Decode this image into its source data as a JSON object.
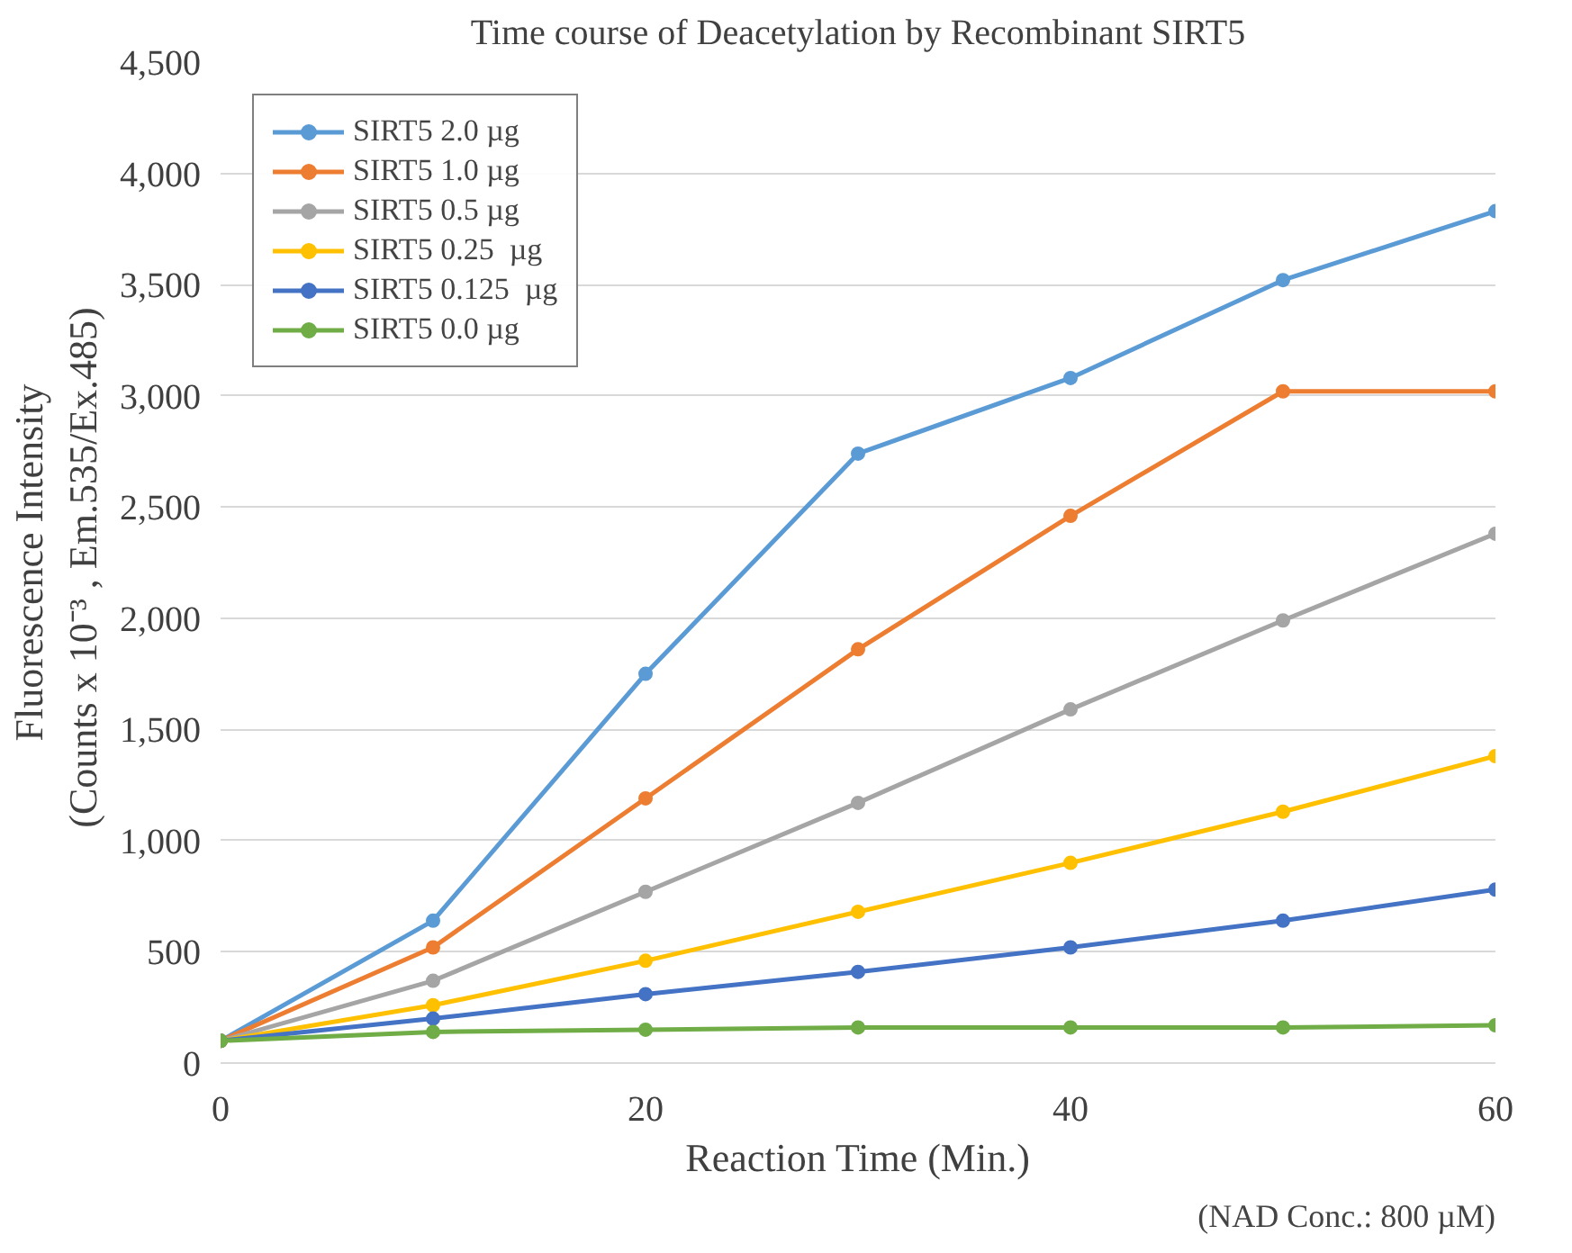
{
  "chart_data": {
    "type": "line",
    "title": "Time course of Deacetylation by Recombinant SIRT5",
    "xlabel": "Reaction Time (Min.)",
    "ylabel": "Fluorescence Intensity\n(Counts x 10⁻³ ,  Em.535/Ex.485)",
    "x": [
      0,
      10,
      20,
      30,
      40,
      50,
      60
    ],
    "series": [
      {
        "name": "SIRT5 2.0 µg",
        "color": "#5b9bd5",
        "values": [
          100,
          640,
          1750,
          2740,
          3080,
          3520,
          3830
        ]
      },
      {
        "name": "SIRT5 1.0 µg",
        "color": "#ed7d31",
        "values": [
          100,
          520,
          1190,
          1860,
          2460,
          3020,
          3020
        ]
      },
      {
        "name": "SIRT5 0.5 µg",
        "color": "#a5a5a5",
        "values": [
          100,
          370,
          770,
          1170,
          1590,
          1990,
          2380
        ]
      },
      {
        "name": "SIRT5 0.25  µg",
        "color": "#ffc000",
        "values": [
          100,
          260,
          460,
          680,
          900,
          1130,
          1380
        ]
      },
      {
        "name": "SIRT5 0.125  µg",
        "color": "#4472c4",
        "values": [
          100,
          200,
          310,
          410,
          520,
          640,
          780
        ]
      },
      {
        "name": "SIRT5 0.0 µg",
        "color": "#70ad47",
        "values": [
          100,
          140,
          150,
          160,
          160,
          160,
          170
        ]
      }
    ],
    "xlim": [
      0,
      60
    ],
    "xticks": [
      0,
      20,
      40,
      60
    ],
    "ylim": [
      0,
      4500
    ],
    "yticks": [
      0,
      500,
      {
        "value": 1000,
        "label": "1,000"
      },
      {
        "value": 1500,
        "label": "1,500"
      },
      {
        "value": 2000,
        "label": "2,000"
      },
      {
        "value": 2500,
        "label": "2,500"
      },
      {
        "value": 3000,
        "label": "3,000"
      },
      {
        "value": 3500,
        "label": "3,500"
      },
      {
        "value": 4000,
        "label": "4,000"
      },
      {
        "value": 4500,
        "label": "4,500"
      }
    ],
    "grid": "y",
    "legend": "top left",
    "marker": "circle",
    "annotations": [
      "(NAD Conc.: 800 µM)"
    ]
  }
}
